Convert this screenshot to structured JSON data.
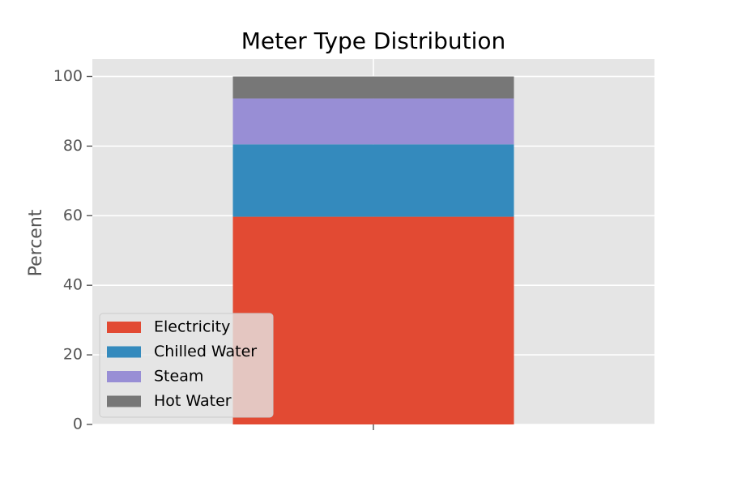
{
  "chart_data": {
    "type": "bar",
    "stacked": true,
    "title": "Meter Type Distribution",
    "xlabel": "",
    "ylabel": "Percent",
    "ylim": [
      0,
      105
    ],
    "yticks": [
      "0",
      "20",
      "40",
      "60",
      "80",
      "100"
    ],
    "categories": [
      ""
    ],
    "grid": true,
    "legend_position": "lower-left",
    "series": [
      {
        "name": "Electricity",
        "values": [
          59.7
        ],
        "color": "#E24A33"
      },
      {
        "name": "Chilled Water",
        "values": [
          20.8
        ],
        "color": "#348ABD"
      },
      {
        "name": "Steam",
        "values": [
          13.2
        ],
        "color": "#988ED5"
      },
      {
        "name": "Hot Water",
        "values": [
          6.3
        ],
        "color": "#777777"
      }
    ],
    "colors": {
      "plot_background": "#E5E5E5",
      "grid": "#FFFFFF",
      "tick_label": "#555555",
      "legend_background": "#E5E5E5",
      "legend_border": "#CCCCCC"
    }
  }
}
